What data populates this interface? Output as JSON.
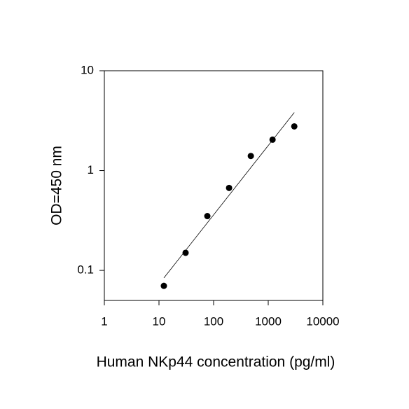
{
  "chart_data": {
    "type": "scatter",
    "x_label": "Human NKp44 concentration (pg/ml)",
    "y_label": "OD=450 nm",
    "x": [
      12.29,
      30.72,
      76.8,
      192,
      480,
      1200,
      3000
    ],
    "values": [
      0.07,
      0.15,
      0.35,
      0.67,
      1.4,
      2.04,
      2.77
    ],
    "color": "#000000",
    "fit": {
      "x": [
        12.29,
        3000
      ],
      "y": [
        0.084,
        3.82
      ]
    },
    "xlog": true,
    "ylog": true,
    "xlim": [
      1,
      10000
    ],
    "ylim": [
      0.05,
      10
    ],
    "xticks": [
      1,
      10,
      100,
      1000,
      10000
    ],
    "yticks": [
      0.1,
      1,
      10
    ]
  }
}
